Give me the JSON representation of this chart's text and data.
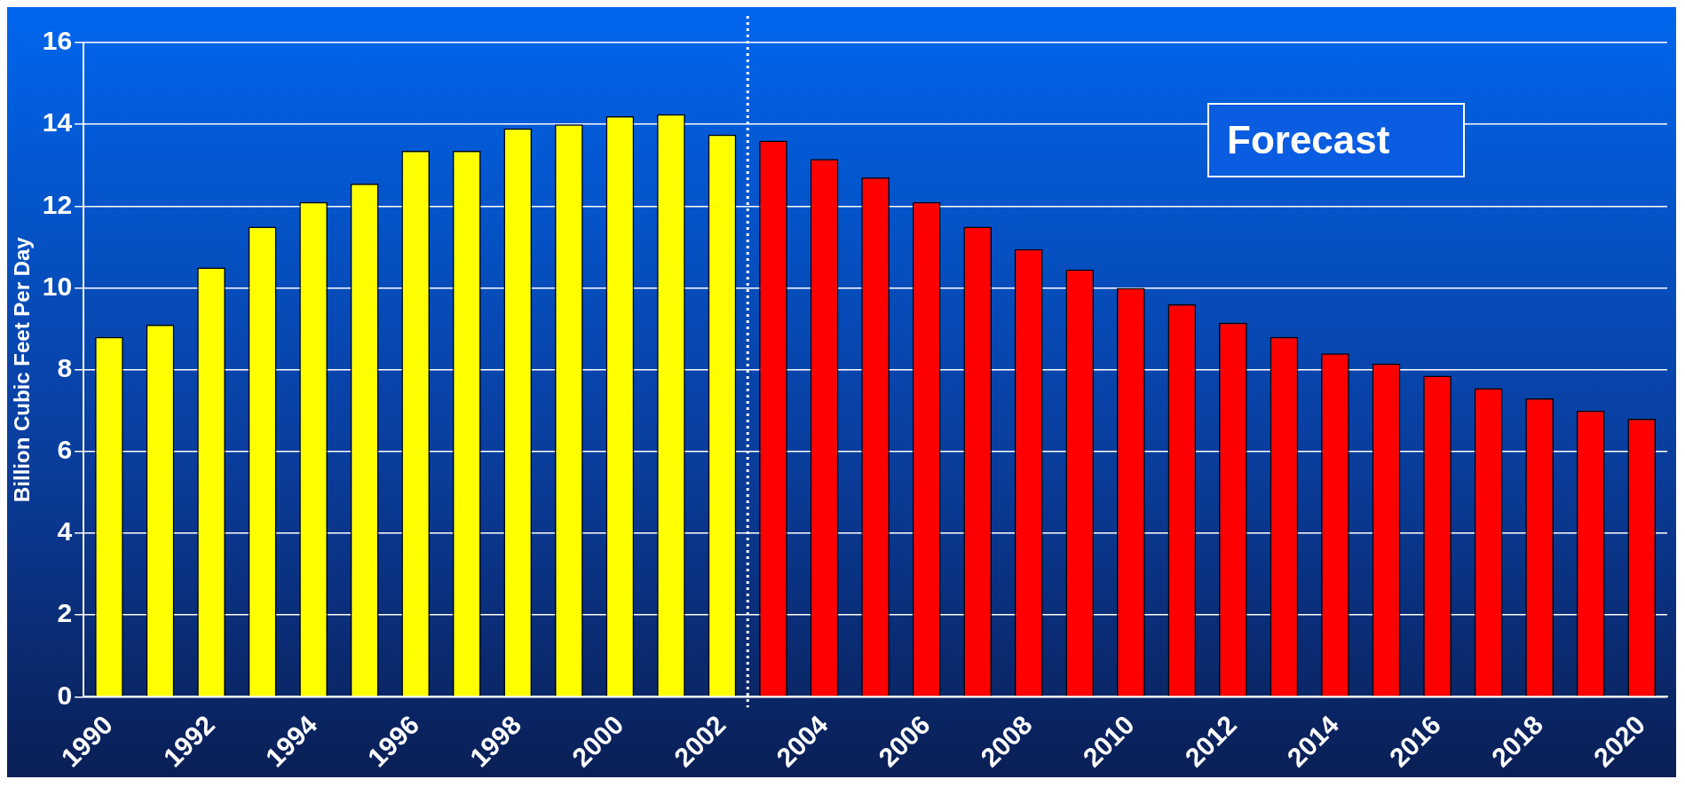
{
  "chart_data": {
    "type": "bar",
    "ylabel": "Billion Cubic Feet Per Day",
    "x": [
      1990,
      1991,
      1992,
      1993,
      1994,
      1995,
      1996,
      1997,
      1998,
      1999,
      2000,
      2001,
      2002,
      2003,
      2004,
      2005,
      2006,
      2007,
      2008,
      2009,
      2010,
      2011,
      2012,
      2013,
      2014,
      2015,
      2016,
      2017,
      2018,
      2019,
      2020
    ],
    "values": [
      8.8,
      9.1,
      10.5,
      11.5,
      12.1,
      12.55,
      13.35,
      13.35,
      13.9,
      14.0,
      14.2,
      14.25,
      13.75,
      13.6,
      13.15,
      12.7,
      12.1,
      11.5,
      10.95,
      10.45,
      10.0,
      9.6,
      9.15,
      8.8,
      8.4,
      8.15,
      7.85,
      7.55,
      7.3,
      7.0,
      6.8
    ],
    "colors": [
      "#ffff00",
      "#ffff00",
      "#ffff00",
      "#ffff00",
      "#ffff00",
      "#ffff00",
      "#ffff00",
      "#ffff00",
      "#ffff00",
      "#ffff00",
      "#ffff00",
      "#ffff00",
      "#ffff00",
      "#ff0000",
      "#ff0000",
      "#ff0000",
      "#ff0000",
      "#ff0000",
      "#ff0000",
      "#ff0000",
      "#ff0000",
      "#ff0000",
      "#ff0000",
      "#ff0000",
      "#ff0000",
      "#ff0000",
      "#ff0000",
      "#ff0000",
      "#ff0000",
      "#ff0000",
      "#ff0000"
    ],
    "xlim": [
      1989.5,
      2020.5
    ],
    "xticks": [
      1990,
      1992,
      1994,
      1996,
      1998,
      2000,
      2002,
      2004,
      2006,
      2008,
      2010,
      2012,
      2014,
      2016,
      2018,
      2020
    ],
    "ylim": [
      0,
      16
    ],
    "yticks": [
      0,
      2,
      4,
      6,
      8,
      10,
      12,
      14,
      16
    ],
    "grid": "y",
    "legend": false,
    "ref_lines": [
      {
        "axis": "x",
        "value": 2002.5,
        "color": "#ffffff",
        "line_style": "dotted"
      }
    ],
    "annotations": [
      "Forecast"
    ]
  }
}
